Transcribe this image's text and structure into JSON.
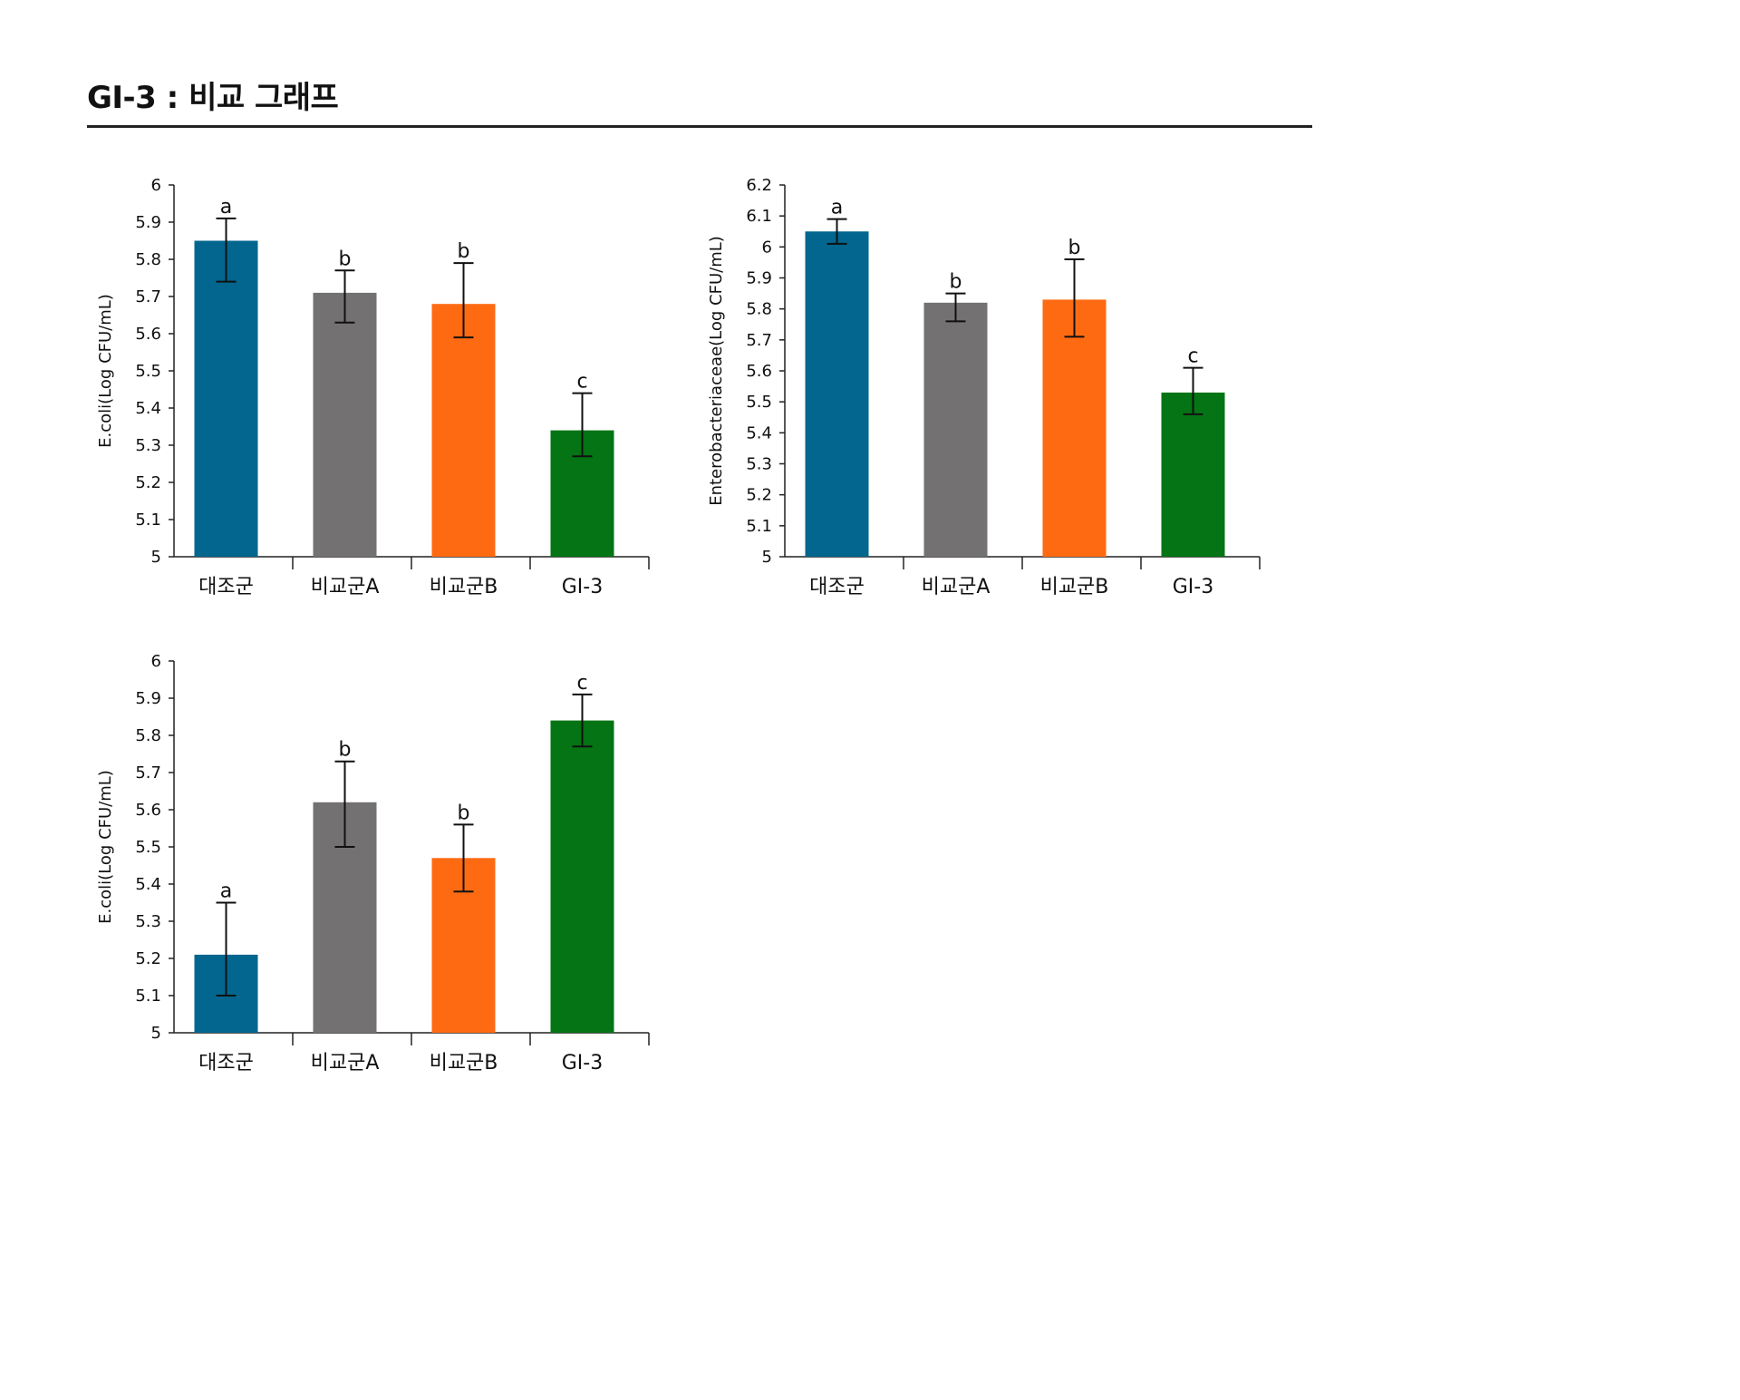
{
  "page": {
    "title": "GI-3 : 비교 그래프"
  },
  "colors": {
    "bar_colors": [
      "#02668F",
      "#737172",
      "#FE6A12",
      "#047415"
    ],
    "axis": "#222222",
    "rule": "#222222"
  },
  "chart_data": [
    {
      "type": "bar",
      "ylabel": "E.coli(Log CFU/mL)",
      "ylim": [
        5,
        6
      ],
      "yticks": [
        "5",
        "5.1",
        "5.2",
        "5.3",
        "5.4",
        "5.5",
        "5.6",
        "5.7",
        "5.8",
        "5.9",
        "6"
      ],
      "categories": [
        "대조군",
        "비교군A",
        "비교군B",
        "GI-3"
      ],
      "values": [
        5.85,
        5.71,
        5.68,
        5.34
      ],
      "error_low": [
        5.74,
        5.63,
        5.59,
        5.27
      ],
      "error_high": [
        5.91,
        5.77,
        5.79,
        5.44
      ],
      "significance": [
        "a",
        "b",
        "b",
        "c"
      ],
      "grid": false
    },
    {
      "type": "bar",
      "ylabel": "Enterobacteriaceae(Log CFU/mL)",
      "ylim": [
        5,
        6.2
      ],
      "yticks": [
        "5",
        "5.1",
        "5.2",
        "5.3",
        "5.4",
        "5.5",
        "5.6",
        "5.7",
        "5.8",
        "5.9",
        "6",
        "6.1",
        "6.2"
      ],
      "categories": [
        "대조군",
        "비교군A",
        "비교군B",
        "GI-3"
      ],
      "values": [
        6.05,
        5.82,
        5.83,
        5.53
      ],
      "error_low": [
        6.01,
        5.76,
        5.71,
        5.46
      ],
      "error_high": [
        6.09,
        5.85,
        5.96,
        5.61
      ],
      "significance": [
        "a",
        "b",
        "b",
        "c"
      ],
      "grid": false
    },
    {
      "type": "bar",
      "ylabel": "E.coli(Log CFU/mL)",
      "ylim": [
        5,
        6
      ],
      "yticks": [
        "5",
        "5.1",
        "5.2",
        "5.3",
        "5.4",
        "5.5",
        "5.6",
        "5.7",
        "5.8",
        "5.9",
        "6"
      ],
      "categories": [
        "대조군",
        "비교군A",
        "비교군B",
        "GI-3"
      ],
      "values": [
        5.21,
        5.62,
        5.47,
        5.84
      ],
      "error_low": [
        5.1,
        5.5,
        5.38,
        5.77
      ],
      "error_high": [
        5.35,
        5.73,
        5.56,
        5.91
      ],
      "significance": [
        "a",
        "b",
        "b",
        "c"
      ],
      "grid": false
    }
  ]
}
